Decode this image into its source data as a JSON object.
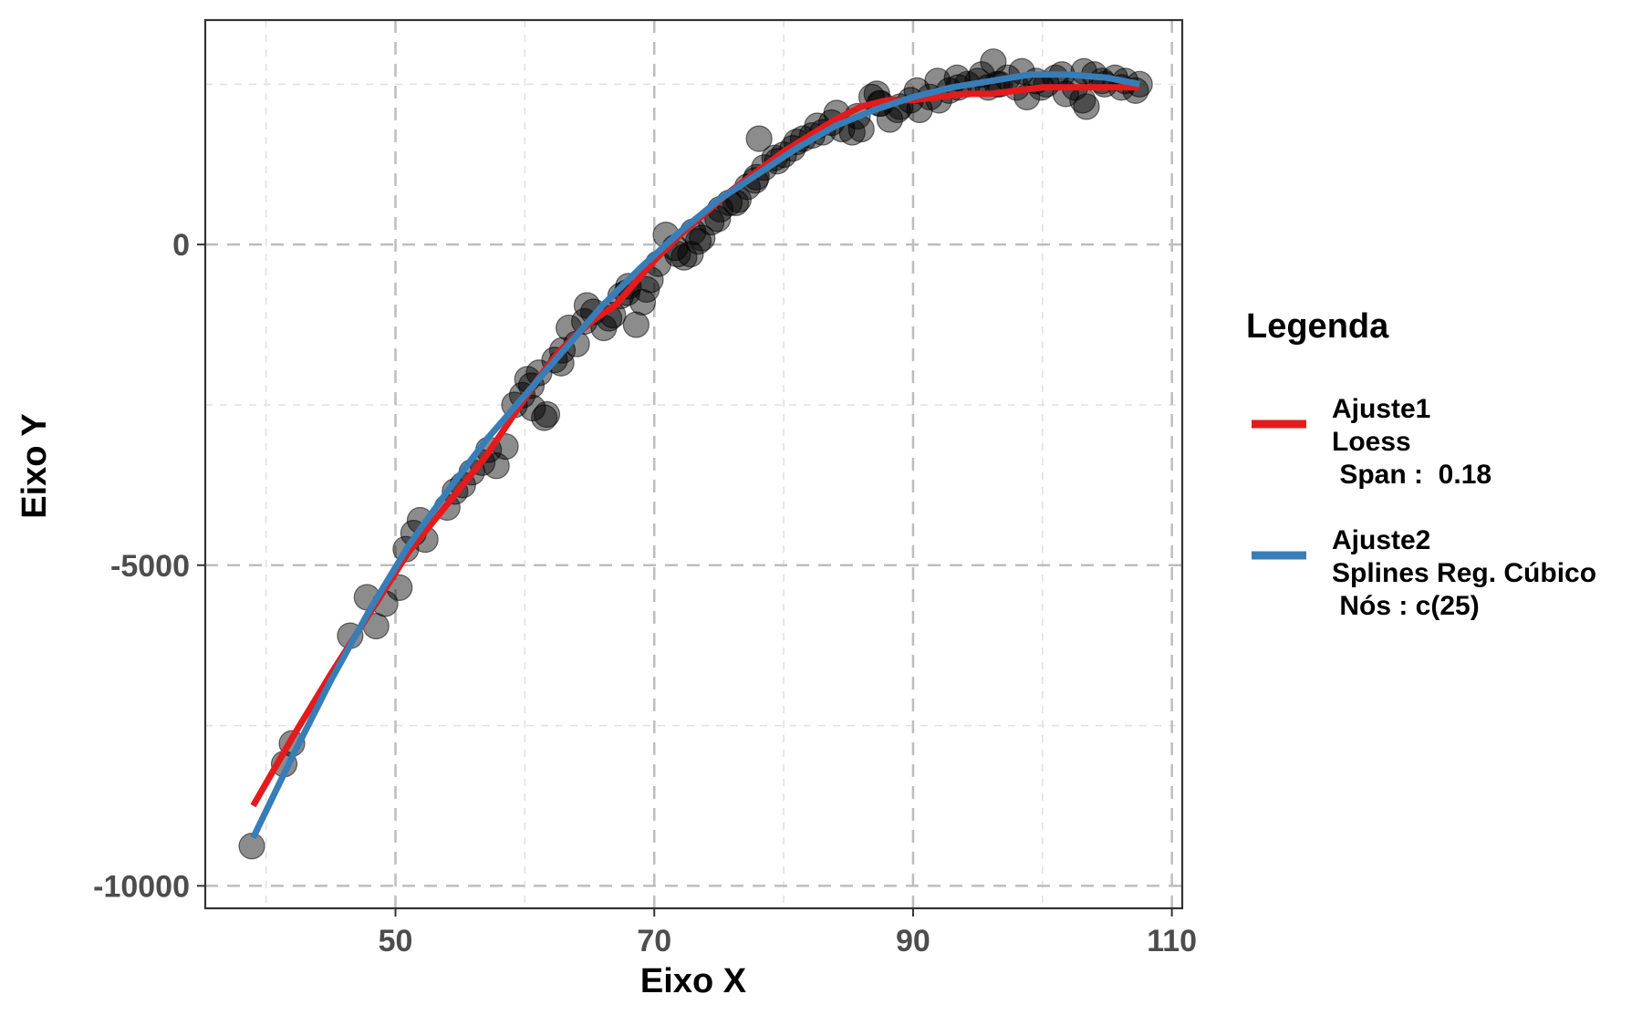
{
  "chart_data": {
    "type": "scatter",
    "title": "",
    "xlabel": "Eixo X",
    "ylabel": "Eixo Y",
    "xlim": [
      35.3,
      110.8
    ],
    "ylim": [
      -10350,
      3500
    ],
    "x_ticks": [
      50,
      70,
      90,
      110
    ],
    "y_ticks": [
      -10000,
      -5000,
      0
    ],
    "x_tick_labels": [
      "50",
      "70",
      "90",
      "110"
    ],
    "y_tick_labels": [
      "-10000",
      "-5000",
      "0"
    ],
    "grid": true,
    "legend": {
      "title": "Legenda",
      "position": "right",
      "entries": [
        {
          "lines": [
            "Ajuste1",
            "Loess",
            " Span :  0.18"
          ],
          "color": "#e41a1c"
        },
        {
          "lines": [
            "Ajuste2",
            "Splines Reg. Cúbico",
            " Nós : c(25)"
          ],
          "color": "#377eb8"
        }
      ]
    },
    "points": {
      "color": "#000000",
      "opacity": 0.45,
      "x": [
        38.9,
        41.4,
        42.0,
        46.5,
        47.8,
        48.5,
        49.2,
        50.3,
        50.8,
        51.4,
        51.9,
        52.3,
        54.0,
        54.6,
        55.2,
        55.9,
        56.7,
        57.2,
        57.8,
        58.5,
        59.2,
        59.8,
        60.2,
        60.6,
        61.1,
        61.7,
        62.3,
        62.9,
        63.4,
        64.0,
        64.6,
        65.3,
        66.1,
        66.8,
        67.4,
        68.0,
        68.6,
        69.1,
        69.7,
        70.3,
        70.9,
        71.6,
        72.3,
        73.0,
        73.7,
        74.4,
        75.1,
        75.8,
        76.5,
        77.2,
        77.8,
        78.5,
        79.3,
        80.0,
        80.7,
        81.5,
        82.2,
        83.0,
        83.7,
        84.5,
        85.3,
        86.0,
        86.8,
        87.5,
        88.2,
        89.0,
        89.8,
        90.5,
        91.3,
        92.0,
        92.8,
        93.5,
        94.2,
        95.0,
        95.8,
        96.5,
        97.3,
        98.0,
        98.8,
        99.5,
        100.3,
        101.0,
        101.8,
        102.5,
        103.2,
        104.0,
        104.8,
        105.6,
        106.4,
        107.2,
        61.5,
        60.5,
        62.8,
        64.8,
        66.5,
        67.9,
        69.4,
        71.8,
        73.4,
        74.9,
        76.3,
        77.9,
        79.5,
        81.0,
        82.6,
        84.1,
        85.7,
        87.2,
        88.8,
        90.3,
        91.9,
        93.4,
        95.3,
        96.7,
        98.4,
        99.9,
        101.5,
        103.1,
        104.6,
        106.1,
        107.5,
        72.8,
        78.1,
        87.4,
        103.4,
        96.2
      ],
      "y": [
        -9380,
        -8100,
        -7780,
        -6100,
        -5500,
        -5950,
        -5600,
        -5350,
        -4750,
        -4500,
        -4300,
        -4600,
        -4100,
        -3850,
        -3750,
        -3550,
        -3400,
        -3200,
        -3450,
        -3150,
        -2500,
        -2350,
        -2100,
        -2550,
        -2000,
        -2650,
        -1800,
        -1650,
        -1300,
        -1550,
        -1200,
        -1050,
        -1300,
        -1100,
        -800,
        -650,
        -1250,
        -900,
        -550,
        -300,
        150,
        -50,
        -200,
        200,
        100,
        350,
        550,
        650,
        700,
        900,
        1000,
        1200,
        1350,
        1400,
        1500,
        1650,
        1700,
        1750,
        1900,
        1800,
        1750,
        1800,
        2300,
        2200,
        1950,
        2150,
        2250,
        2100,
        2300,
        2250,
        2400,
        2450,
        2500,
        2550,
        2450,
        2500,
        2600,
        2450,
        2300,
        2550,
        2500,
        2600,
        2350,
        2450,
        2700,
        2650,
        2500,
        2600,
        2550,
        2400,
        -2700,
        -2200,
        -1850,
        -950,
        -1150,
        -750,
        -700,
        -150,
        50,
        400,
        650,
        1050,
        1300,
        1600,
        1850,
        2050,
        2000,
        2350,
        2100,
        2400,
        2550,
        2600,
        2650,
        2500,
        2700,
        2450,
        2650,
        2250,
        2550,
        2450,
        2500,
        -150,
        1650,
        2200,
        2150,
        2850
      ]
    },
    "series": [
      {
        "name": "Ajuste1\nLoess\n Span :  0.18",
        "color": "#e41a1c",
        "x": [
          39.0,
          42.0,
          45.0,
          48.0,
          51.0,
          54.0,
          57.0,
          59.0,
          61.0,
          62.5,
          64.0,
          65.5,
          67.0,
          68.5,
          70.0,
          72.0,
          74.0,
          76.0,
          78.0,
          80.0,
          82.0,
          84.0,
          86.0,
          88.0,
          90.0,
          92.0,
          94.0,
          96.0,
          98.0,
          100.0,
          102.0,
          104.0,
          106.0,
          107.5
        ],
        "y": [
          -8750,
          -7700,
          -6700,
          -5750,
          -4800,
          -4050,
          -3300,
          -2700,
          -2100,
          -1700,
          -1400,
          -1150,
          -950,
          -600,
          -250,
          150,
          500,
          850,
          1150,
          1450,
          1700,
          1950,
          2150,
          2250,
          2250,
          2300,
          2350,
          2350,
          2400,
          2450,
          2450,
          2450,
          2450,
          2450
        ]
      },
      {
        "name": "Ajuste2\nSplines Reg. Cúbico\n Nós : c(25)",
        "color": "#377eb8",
        "x": [
          39.0,
          42.0,
          45.0,
          48.0,
          51.0,
          54.0,
          57.0,
          60.0,
          63.0,
          66.0,
          69.0,
          72.0,
          75.0,
          78.0,
          81.0,
          84.0,
          87.0,
          90.0,
          93.0,
          96.0,
          99.0,
          102.0,
          105.0,
          107.5
        ],
        "y": [
          -9250,
          -8000,
          -6800,
          -5700,
          -4700,
          -3850,
          -3050,
          -2350,
          -1650,
          -950,
          -350,
          200,
          700,
          1100,
          1500,
          1850,
          2100,
          2300,
          2450,
          2550,
          2650,
          2650,
          2600,
          2500
        ]
      }
    ]
  }
}
